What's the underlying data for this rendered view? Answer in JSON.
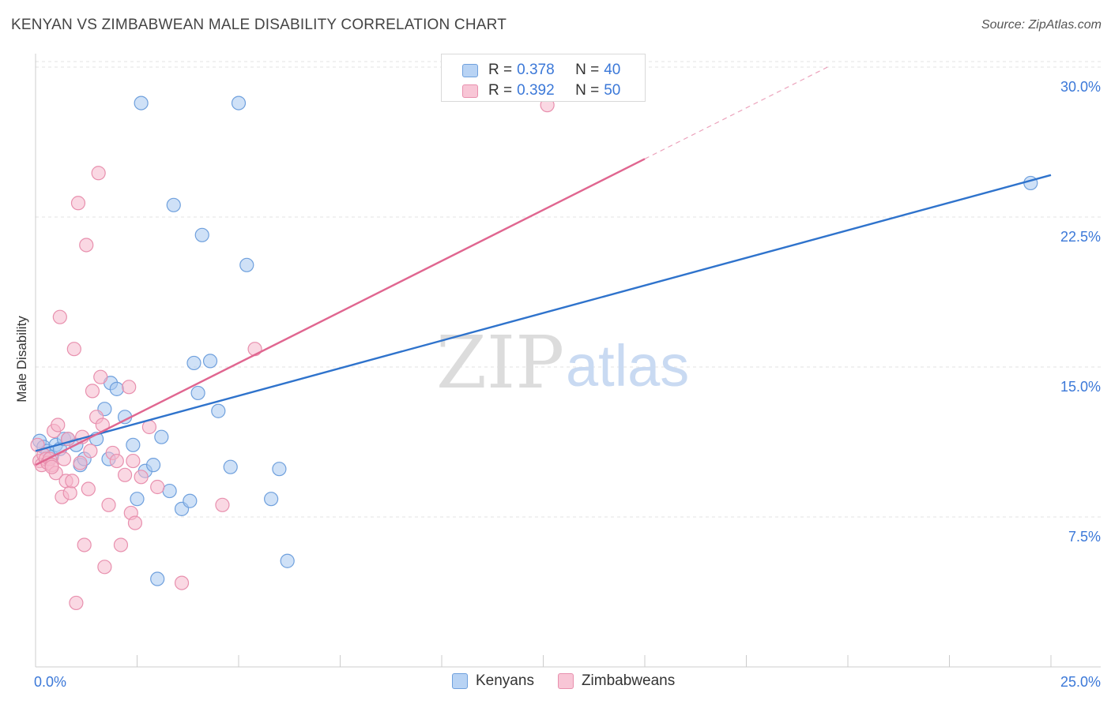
{
  "title": "KENYAN VS ZIMBABWEAN MALE DISABILITY CORRELATION CHART",
  "source": "Source: ZipAtlas.com",
  "watermark": {
    "zip": "ZIP",
    "atlas": "atlas"
  },
  "legend_top": [
    {
      "r_label": "R =",
      "r_value": "0.378",
      "n_label": "N =",
      "n_value": "40"
    },
    {
      "r_label": "R =",
      "r_value": "0.392",
      "n_label": "N =",
      "n_value": "50"
    }
  ],
  "legend_bottom": [
    "Kenyans",
    "Zimbabweans"
  ],
  "colors": {
    "kenyans_fill": "#a8c8f0",
    "kenyans_stroke": "#6fa0dd",
    "kenyans_line": "#2f73cc",
    "zimbabweans_fill": "#f6b8cc",
    "zimbabweans_stroke": "#e890ae",
    "zimbabweans_line": "#e06690",
    "tick_text": "#3b78d8",
    "grid": "#e3e3e3"
  },
  "chart_data": {
    "type": "scatter",
    "title": "KENYAN VS ZIMBABWEAN MALE DISABILITY CORRELATION CHART",
    "xlabel": "",
    "ylabel": "Male Disability",
    "xlim": [
      0,
      25
    ],
    "ylim": [
      0,
      31.5
    ],
    "x_tick_labels": [
      {
        "value": 0,
        "label": "0.0%"
      },
      {
        "value": 25,
        "label": "25.0%"
      }
    ],
    "y_tick_labels": [
      {
        "value": 7.5,
        "label": "7.5%"
      },
      {
        "value": 15,
        "label": "15.0%"
      },
      {
        "value": 22.5,
        "label": "22.5%"
      },
      {
        "value": 30,
        "label": "30.0%"
      }
    ],
    "series": [
      {
        "name": "Kenyans",
        "r": 0.378,
        "n": 40,
        "trend": {
          "x": [
            0,
            25
          ],
          "y": [
            10.8,
            24.6
          ],
          "solid_to": 25
        },
        "points": [
          [
            0.1,
            11.3
          ],
          [
            0.2,
            11.0
          ],
          [
            0.3,
            10.8
          ],
          [
            0.4,
            10.5
          ],
          [
            0.5,
            11.1
          ],
          [
            0.6,
            10.9
          ],
          [
            0.7,
            11.4
          ],
          [
            0.8,
            11.4
          ],
          [
            1.0,
            11.1
          ],
          [
            1.1,
            10.1
          ],
          [
            1.2,
            10.4
          ],
          [
            1.5,
            11.4
          ],
          [
            1.7,
            12.9
          ],
          [
            1.8,
            10.4
          ],
          [
            1.85,
            14.2
          ],
          [
            2.0,
            13.9
          ],
          [
            2.2,
            12.5
          ],
          [
            2.4,
            11.1
          ],
          [
            2.5,
            8.4
          ],
          [
            2.6,
            28.2
          ],
          [
            2.7,
            9.8
          ],
          [
            2.9,
            10.1
          ],
          [
            3.0,
            4.4
          ],
          [
            3.1,
            11.5
          ],
          [
            3.3,
            8.8
          ],
          [
            3.4,
            23.1
          ],
          [
            3.6,
            7.9
          ],
          [
            3.8,
            8.3
          ],
          [
            3.9,
            15.2
          ],
          [
            4.0,
            13.7
          ],
          [
            4.1,
            21.6
          ],
          [
            4.3,
            15.3
          ],
          [
            4.8,
            10.0
          ],
          [
            5.0,
            28.2
          ],
          [
            5.2,
            20.1
          ],
          [
            5.8,
            8.4
          ],
          [
            6.0,
            9.9
          ],
          [
            6.2,
            5.3
          ],
          [
            4.5,
            12.8
          ],
          [
            24.5,
            24.2
          ]
        ]
      },
      {
        "name": "Zimbabweans",
        "r": 0.392,
        "n": 50,
        "trend": {
          "x": [
            0,
            19.5
          ],
          "y": [
            10.1,
            30.0
          ],
          "solid_to": 15.0
        },
        "points": [
          [
            0.1,
            10.3
          ],
          [
            0.15,
            10.1
          ],
          [
            0.2,
            10.6
          ],
          [
            0.25,
            10.4
          ],
          [
            0.3,
            10.2
          ],
          [
            0.35,
            10.4
          ],
          [
            0.4,
            10.1
          ],
          [
            0.45,
            11.8
          ],
          [
            0.5,
            9.7
          ],
          [
            0.55,
            12.1
          ],
          [
            0.6,
            17.5
          ],
          [
            0.65,
            8.5
          ],
          [
            0.7,
            10.4
          ],
          [
            0.75,
            9.3
          ],
          [
            0.8,
            11.4
          ],
          [
            0.85,
            8.7
          ],
          [
            0.9,
            9.3
          ],
          [
            0.95,
            15.9
          ],
          [
            1.0,
            3.2
          ],
          [
            1.05,
            23.2
          ],
          [
            1.1,
            10.2
          ],
          [
            1.2,
            6.1
          ],
          [
            1.25,
            21.1
          ],
          [
            1.3,
            8.9
          ],
          [
            1.35,
            10.8
          ],
          [
            1.4,
            13.8
          ],
          [
            1.5,
            12.5
          ],
          [
            1.55,
            24.7
          ],
          [
            1.6,
            14.5
          ],
          [
            1.65,
            12.1
          ],
          [
            1.7,
            5.0
          ],
          [
            1.8,
            8.1
          ],
          [
            1.9,
            10.7
          ],
          [
            2.0,
            10.3
          ],
          [
            2.1,
            6.1
          ],
          [
            2.2,
            9.6
          ],
          [
            2.3,
            14.0
          ],
          [
            2.35,
            7.7
          ],
          [
            2.4,
            10.3
          ],
          [
            2.45,
            7.2
          ],
          [
            2.6,
            9.5
          ],
          [
            3.0,
            9.0
          ],
          [
            3.6,
            4.2
          ],
          [
            4.6,
            8.1
          ],
          [
            5.4,
            15.9
          ],
          [
            2.8,
            12.0
          ],
          [
            0.05,
            11.1
          ],
          [
            12.6,
            28.1
          ],
          [
            1.15,
            11.5
          ],
          [
            0.4,
            10.0
          ]
        ]
      }
    ]
  }
}
